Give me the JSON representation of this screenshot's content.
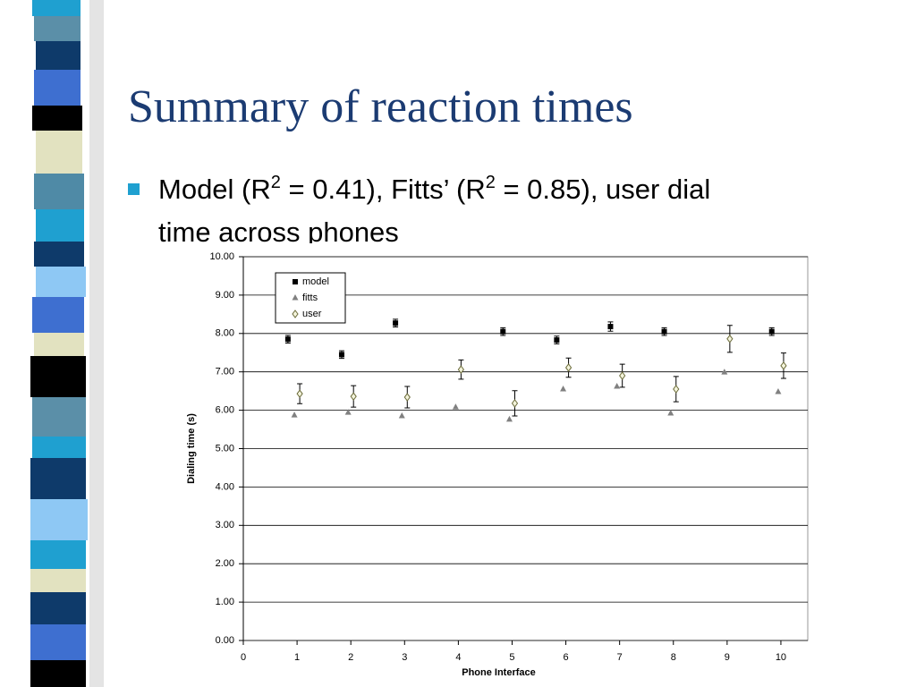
{
  "header": {
    "title": "Summary of reaction times"
  },
  "bullet": {
    "segments": [
      "Model (R",
      "2",
      " = 0.41), Fitts’ (R",
      "2",
      " = 0.85), user dial"
    ],
    "continuation": "time across phones"
  },
  "chart_data": {
    "type": "scatter",
    "xlabel": "Phone Interface",
    "ylabel": "Dialing time (s)",
    "x": [
      1,
      2,
      3,
      4,
      5,
      6,
      7,
      8,
      9,
      10
    ],
    "series": [
      {
        "name": "model",
        "color": "#000000",
        "marker": "square",
        "values": [
          7.85,
          7.45,
          8.27,
          null,
          8.05,
          7.83,
          8.18,
          8.05,
          null,
          8.05
        ],
        "errors": [
          0.1,
          0.1,
          0.1,
          null,
          0.1,
          0.1,
          0.12,
          0.1,
          null,
          0.1
        ]
      },
      {
        "name": "fitts",
        "color": "#808080",
        "marker": "triangle",
        "values": [
          5.87,
          5.94,
          5.85,
          6.08,
          5.76,
          6.55,
          6.62,
          5.92,
          6.99,
          6.48
        ]
      },
      {
        "name": "user",
        "color": "#6b6b3a",
        "marker": "diamond",
        "values": [
          6.43,
          6.36,
          6.34,
          7.06,
          6.18,
          7.11,
          6.9,
          6.55,
          7.86,
          7.16
        ],
        "errors": [
          0.26,
          0.28,
          0.28,
          0.25,
          0.33,
          0.25,
          0.3,
          0.33,
          0.35,
          0.33
        ]
      }
    ],
    "xlim": [
      0,
      10.5
    ],
    "xticks": [
      0,
      1,
      2,
      3,
      4,
      5,
      6,
      7,
      8,
      9,
      10
    ],
    "ylim": [
      0,
      10
    ],
    "yticks": [
      {
        "value": 0,
        "label": "0.00"
      },
      {
        "value": 1,
        "label": "1.00"
      },
      {
        "value": 2,
        "label": "2.00"
      },
      {
        "value": 3,
        "label": "3.00"
      },
      {
        "value": 4,
        "label": "4.00"
      },
      {
        "value": 5,
        "label": "5.00"
      },
      {
        "value": 6,
        "label": "6.00"
      },
      {
        "value": 7,
        "label": "7.00"
      },
      {
        "value": 8,
        "label": "8.00"
      },
      {
        "value": 9,
        "label": "9.00"
      },
      {
        "value": 10,
        "label": "10.00"
      }
    ],
    "grid": true,
    "legend": "upper-left"
  }
}
